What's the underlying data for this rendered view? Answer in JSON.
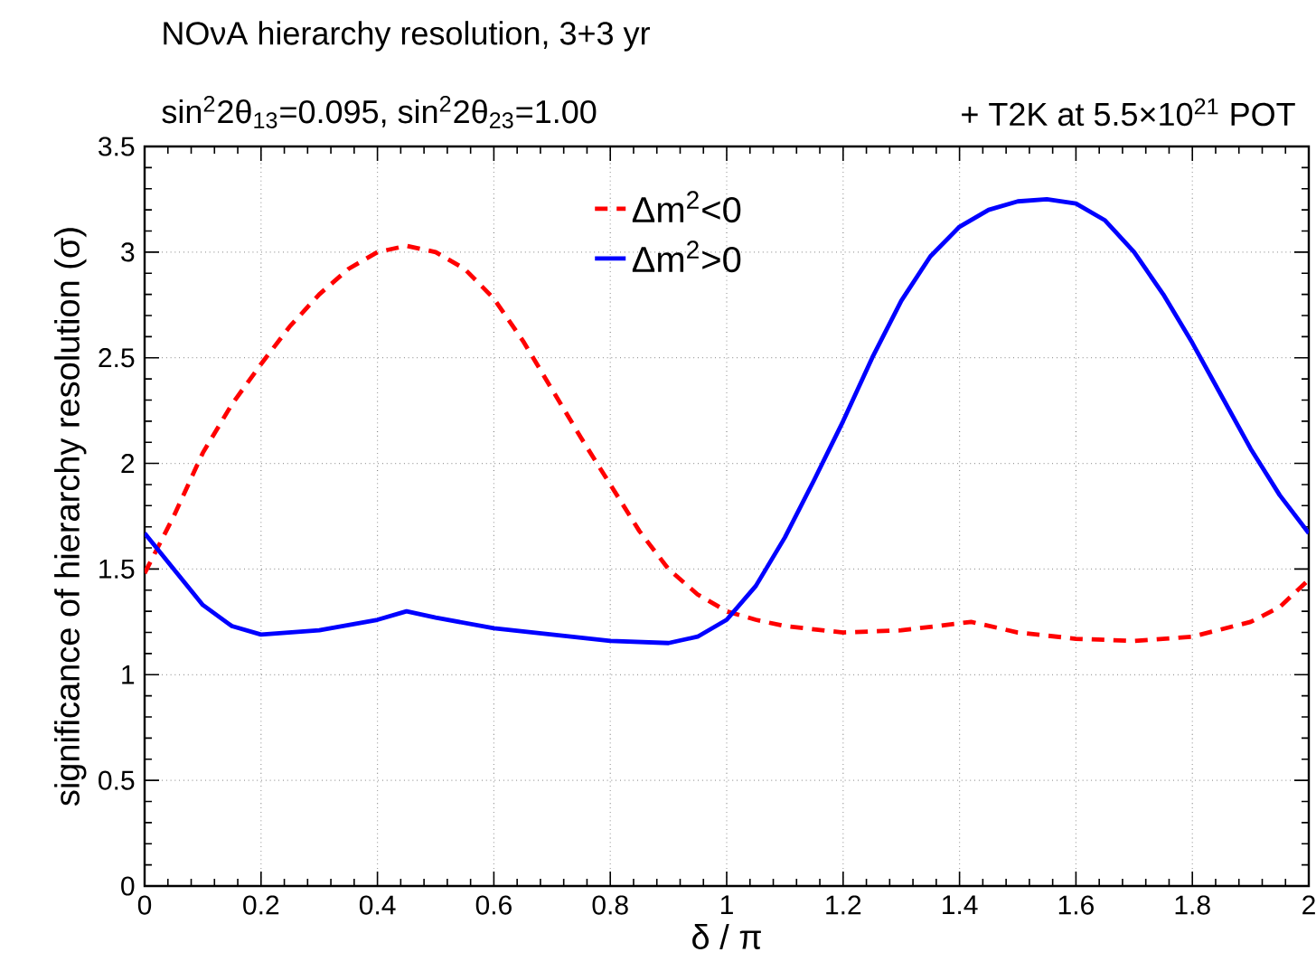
{
  "chart_data": {
    "type": "line",
    "title": "NOνA hierarchy resolution, 3+3 yr",
    "subtitle": "sin$^{2}$2θ$_{13}$=0.095, sin$^{2}$2θ$_{23}$=1.00",
    "annotations": [
      "+ T2K at 5.5×10$^{21}$ POT"
    ],
    "xlabel": "δ / π",
    "ylabel": "significance of hierarchy resolution (σ)",
    "xlim": [
      0,
      2
    ],
    "ylim": [
      0,
      3.5
    ],
    "xticks": [
      0,
      0.2,
      0.4,
      0.6,
      0.8,
      1,
      1.2,
      1.4,
      1.6,
      1.8,
      2
    ],
    "yticks": [
      0,
      0.5,
      1,
      1.5,
      2,
      2.5,
      3,
      3.5
    ],
    "grid": true,
    "legend": "top",
    "series": [
      {
        "name": "Δm$^{2}$<0",
        "color": "#ff0000",
        "line_style": "dashed",
        "x": [
          0,
          0.05,
          0.1,
          0.15,
          0.2,
          0.25,
          0.3,
          0.35,
          0.4,
          0.45,
          0.5,
          0.55,
          0.6,
          0.65,
          0.7,
          0.75,
          0.8,
          0.85,
          0.9,
          0.95,
          1,
          1.05,
          1.1,
          1.2,
          1.3,
          1.42,
          1.5,
          1.6,
          1.7,
          1.8,
          1.9,
          1.95,
          2
        ],
        "values": [
          1.48,
          1.75,
          2.05,
          2.28,
          2.47,
          2.65,
          2.8,
          2.92,
          3.0,
          3.03,
          3.0,
          2.92,
          2.78,
          2.58,
          2.35,
          2.12,
          1.9,
          1.68,
          1.5,
          1.38,
          1.3,
          1.26,
          1.23,
          1.2,
          1.21,
          1.25,
          1.2,
          1.17,
          1.16,
          1.18,
          1.25,
          1.32,
          1.45
        ]
      },
      {
        "name": "Δm$^{2}$>0",
        "color": "#0000ff",
        "line_style": "solid",
        "x": [
          0,
          0.05,
          0.1,
          0.15,
          0.2,
          0.3,
          0.4,
          0.45,
          0.5,
          0.6,
          0.7,
          0.8,
          0.9,
          0.95,
          1,
          1.05,
          1.1,
          1.15,
          1.2,
          1.25,
          1.3,
          1.35,
          1.4,
          1.45,
          1.5,
          1.55,
          1.6,
          1.65,
          1.7,
          1.75,
          1.8,
          1.85,
          1.9,
          1.95,
          2
        ],
        "values": [
          1.67,
          1.5,
          1.33,
          1.23,
          1.19,
          1.21,
          1.26,
          1.3,
          1.27,
          1.22,
          1.19,
          1.16,
          1.15,
          1.18,
          1.26,
          1.42,
          1.65,
          1.92,
          2.2,
          2.5,
          2.77,
          2.98,
          3.12,
          3.2,
          3.24,
          3.25,
          3.23,
          3.15,
          3.0,
          2.8,
          2.57,
          2.32,
          2.07,
          1.85,
          1.67
        ]
      }
    ]
  }
}
